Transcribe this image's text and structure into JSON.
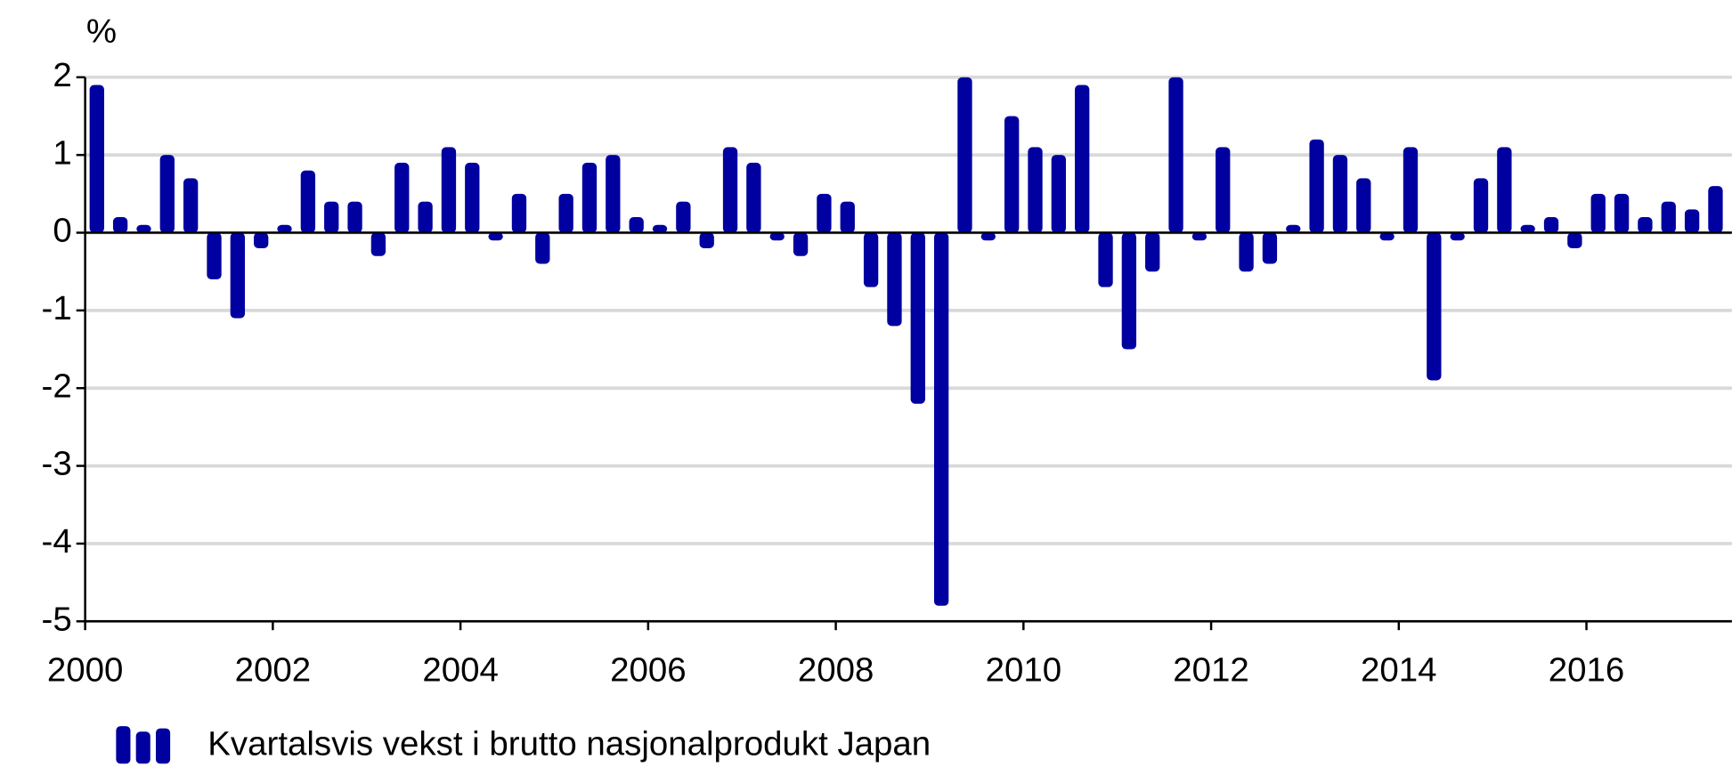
{
  "chart_data": {
    "type": "bar",
    "y_label": "%",
    "x": [
      2000.125,
      2000.375,
      2000.625,
      2000.875,
      2001.125,
      2001.375,
      2001.625,
      2001.875,
      2002.125,
      2002.375,
      2002.625,
      2002.875,
      2003.125,
      2003.375,
      2003.625,
      2003.875,
      2004.125,
      2004.375,
      2004.625,
      2004.875,
      2005.125,
      2005.375,
      2005.625,
      2005.875,
      2006.125,
      2006.375,
      2006.625,
      2006.875,
      2007.125,
      2007.375,
      2007.625,
      2007.875,
      2008.125,
      2008.375,
      2008.625,
      2008.875,
      2009.125,
      2009.375,
      2009.625,
      2009.875,
      2010.125,
      2010.375,
      2010.625,
      2010.875,
      2011.125,
      2011.375,
      2011.625,
      2011.875,
      2012.125,
      2012.375,
      2012.625,
      2012.875,
      2013.125,
      2013.375,
      2013.625,
      2013.875,
      2014.125,
      2014.375,
      2014.625,
      2014.875,
      2015.125,
      2015.375,
      2015.625,
      2015.875,
      2016.125,
      2016.375,
      2016.625,
      2016.875,
      2017.125,
      2017.375
    ],
    "series": [
      {
        "name": "Kvartalsvis vekst i brutto nasjonalprodukt Japan",
        "color": "#0000a0",
        "values": [
          1.9,
          0.2,
          0.1,
          1.0,
          0.7,
          -0.6,
          -1.1,
          -0.2,
          0.1,
          0.8,
          0.4,
          0.4,
          -0.3,
          0.9,
          0.4,
          1.1,
          0.9,
          -0.1,
          0.5,
          -0.4,
          0.5,
          0.9,
          1.0,
          0.2,
          0.1,
          0.4,
          -0.2,
          1.1,
          0.9,
          -0.1,
          -0.3,
          0.5,
          0.4,
          -0.7,
          -1.2,
          -2.2,
          -4.8,
          2.0,
          -0.1,
          1.5,
          1.1,
          1.0,
          1.9,
          -0.7,
          -1.5,
          -0.5,
          2.0,
          -0.1,
          1.1,
          -0.5,
          -0.4,
          0.1,
          1.2,
          1.0,
          0.7,
          -0.1,
          1.1,
          -1.9,
          -0.1,
          0.7,
          1.1,
          0.1,
          0.2,
          -0.2,
          0.5,
          0.5,
          0.2,
          0.4,
          0.3,
          0.6
        ]
      }
    ],
    "xlim": [
      2000,
      2017.55
    ],
    "xticks": [
      2000,
      2002,
      2004,
      2006,
      2008,
      2010,
      2012,
      2014,
      2016
    ],
    "ylim": [
      -5,
      2
    ],
    "yticks": [
      -5,
      -4,
      -3,
      -2,
      -1,
      0,
      1,
      2
    ],
    "grid": true
  }
}
